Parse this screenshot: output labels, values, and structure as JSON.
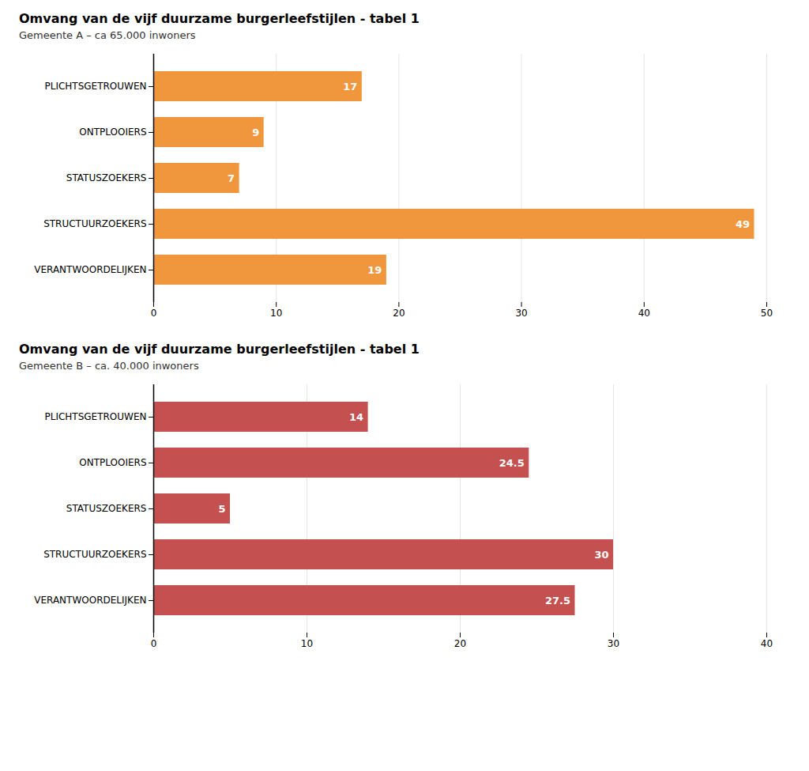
{
  "chart_data": [
    {
      "type": "bar",
      "title": "Omvang van de vijf duurzame burgerleefstijlen - tabel 1",
      "subtitle": "Gemeente A – ca 65.000 inwoners",
      "orientation": "horizontal",
      "categories": [
        "PLICHTSGETROUWEN",
        "ONTPLOOIERS",
        "STATUSZOEKERS",
        "STRUCTUURZOEKERS",
        "VERANTWOORDELIJKEN"
      ],
      "values": [
        17,
        9,
        7,
        49,
        19
      ],
      "color": "#F0963C",
      "xlim": [
        0,
        50
      ],
      "xticks": [
        0,
        10,
        20,
        30,
        40,
        50
      ],
      "grid": true,
      "data_labels": true
    },
    {
      "type": "bar",
      "title": "Omvang van de vijf duurzame burgerleefstijlen - tabel 1",
      "subtitle": "Gemeente B – ca. 40.000 inwoners",
      "orientation": "horizontal",
      "categories": [
        "PLICHTSGETROUWEN",
        "ONTPLOOIERS",
        "STATUSZOEKERS",
        "STRUCTUURZOEKERS",
        "VERANTWOORDELIJKEN"
      ],
      "values": [
        14,
        24.5,
        5,
        30,
        27.5
      ],
      "color": "#C45050",
      "xlim": [
        0,
        40
      ],
      "xticks": [
        0,
        10,
        20,
        30,
        40
      ],
      "grid": true,
      "data_labels": true
    }
  ]
}
